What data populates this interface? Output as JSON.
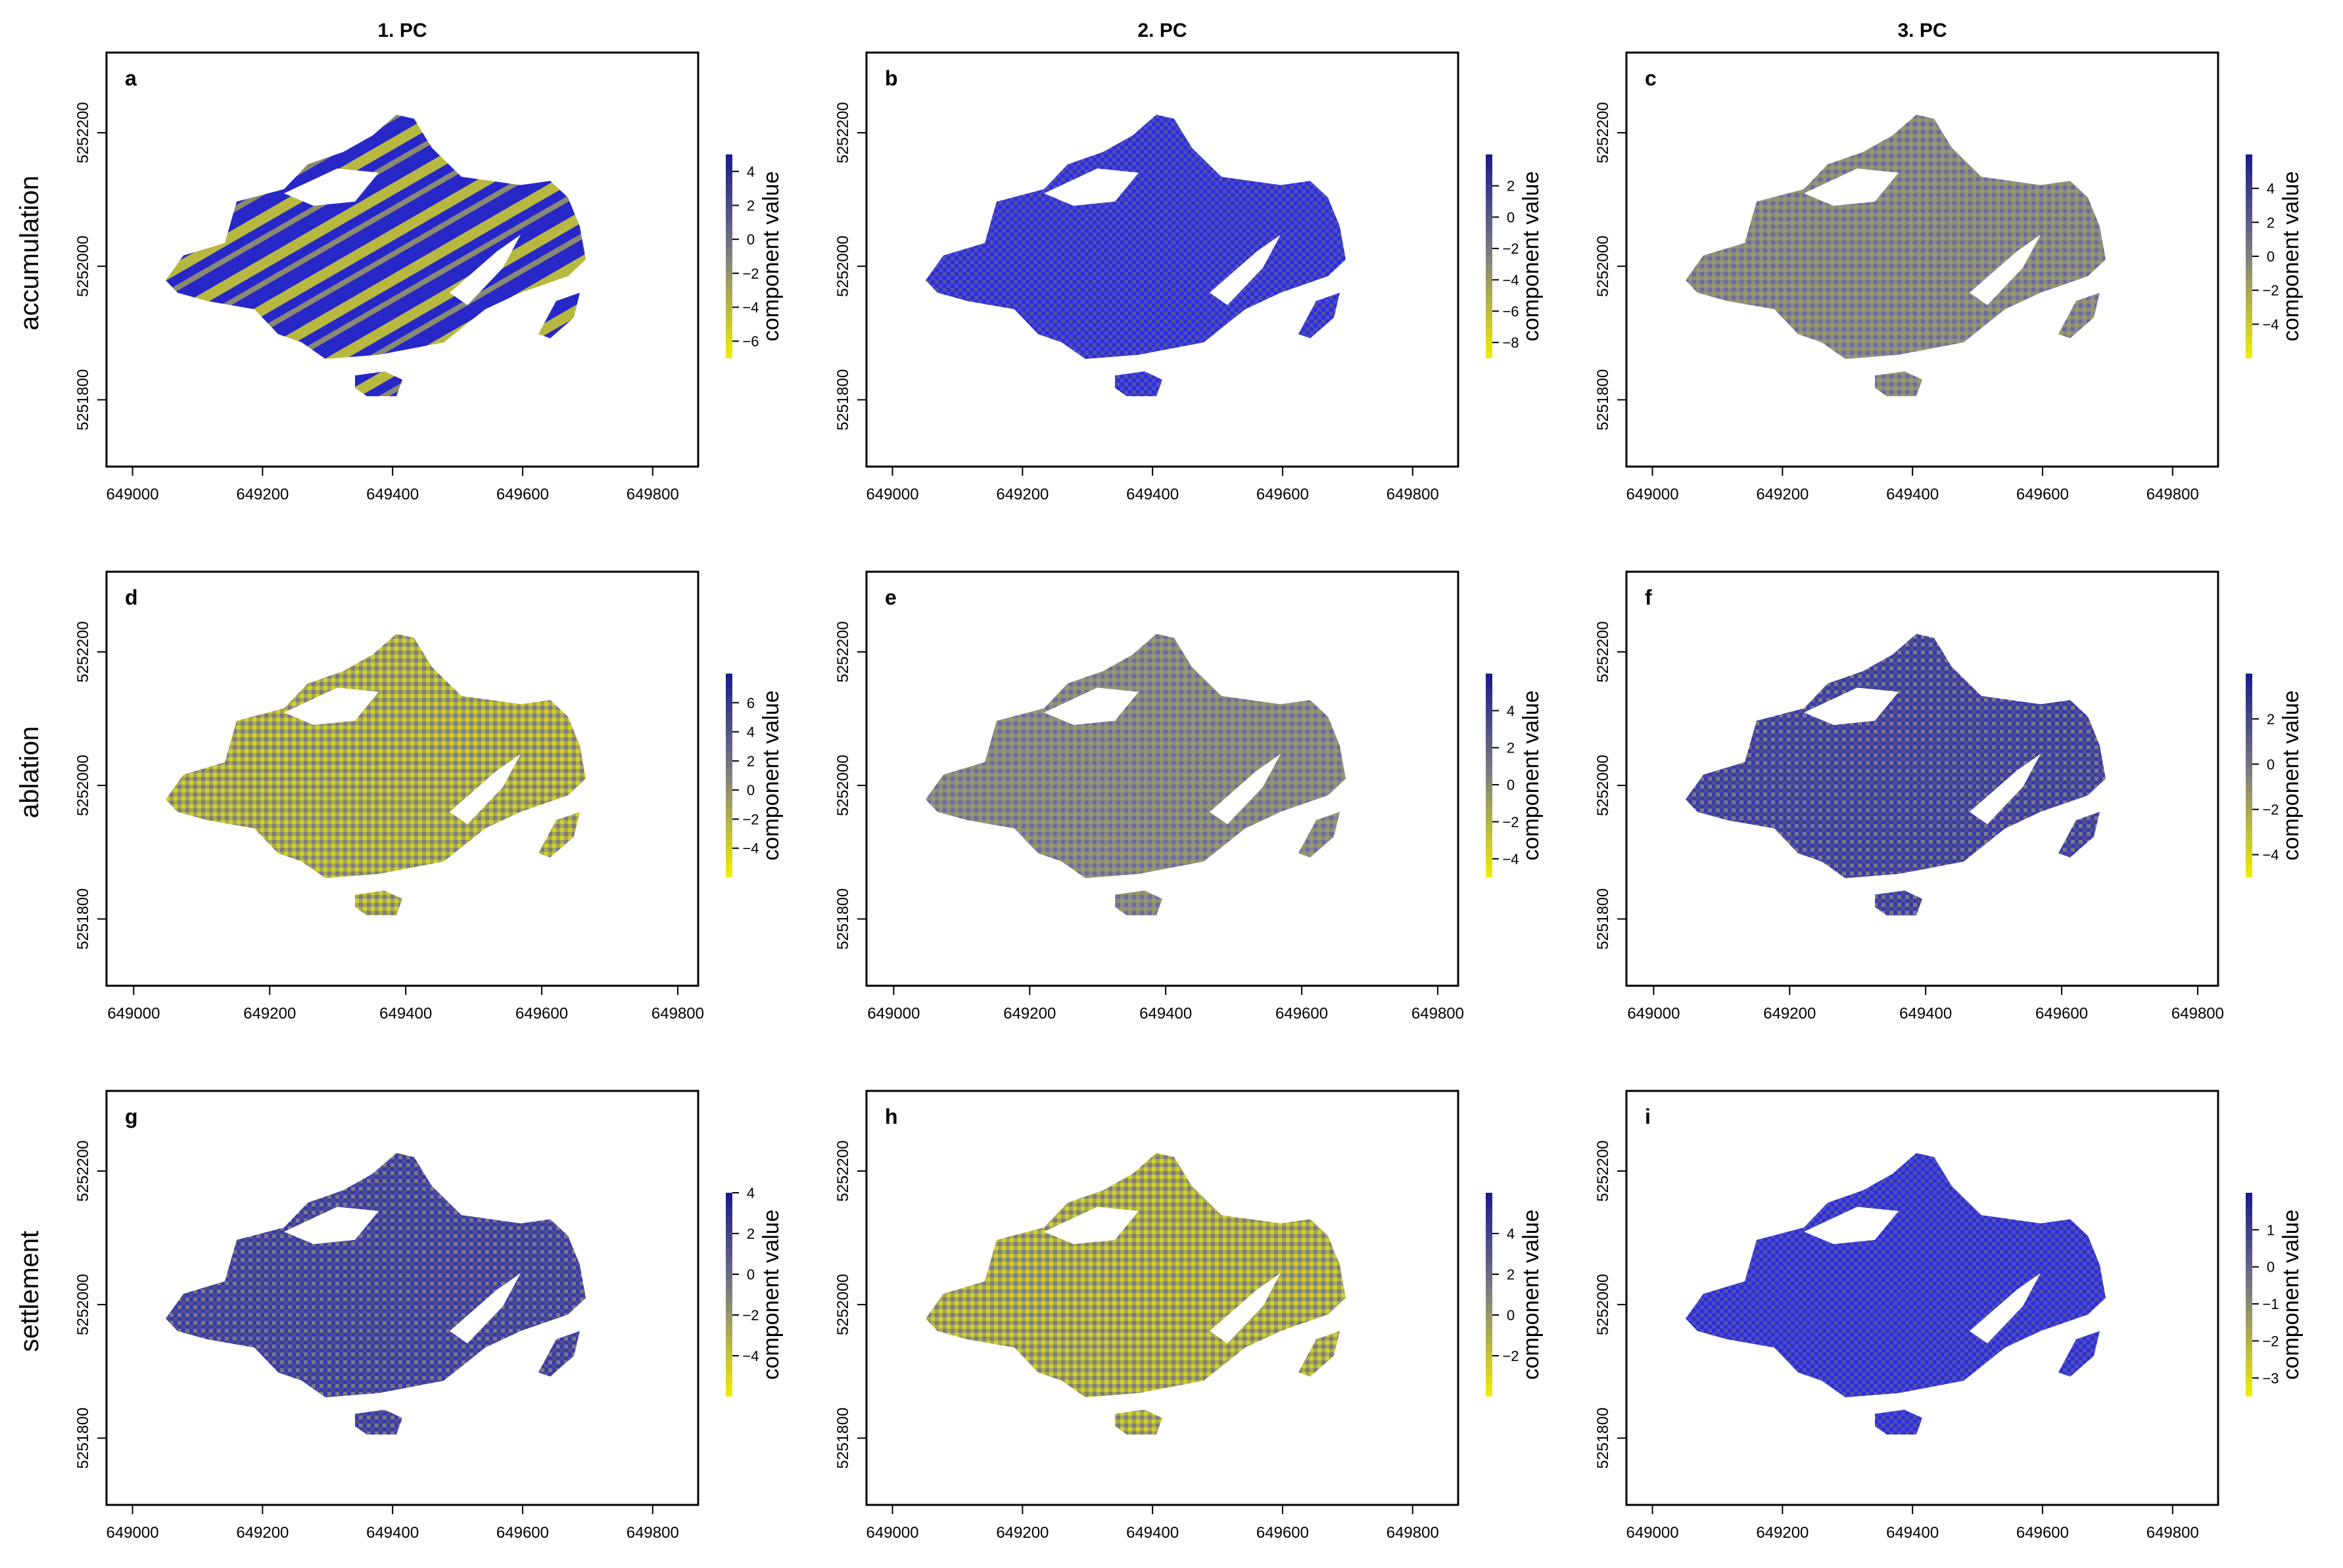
{
  "figure": {
    "column_titles": [
      "1. PC",
      "2. PC",
      "3. PC"
    ],
    "row_titles": [
      "accumulation",
      "ablation",
      "settlement"
    ],
    "colorbar_label": "component value",
    "colors": {
      "low": "#f0f000",
      "mid": "#808080",
      "high": "#1a1a8c",
      "bright_blue": "#2b2be0",
      "frame": "#000000"
    }
  },
  "chart_data": [
    {
      "type": "heatmap",
      "panel": "a",
      "row": "accumulation",
      "column": "1. PC",
      "xlim": [
        648960,
        649870
      ],
      "ylim": [
        5251700,
        5252320
      ],
      "xticks": [
        649000,
        649200,
        649400,
        649600,
        649800
      ],
      "xtick_labels": [
        "649000",
        "649200",
        "649400",
        "649600",
        "649800"
      ],
      "yticks": [
        5251800,
        5252000,
        5252200
      ],
      "ytick_labels": [
        "5251800",
        "5252000",
        "5252200"
      ],
      "colorbar": {
        "label": "component value",
        "range": [
          -7,
          5
        ],
        "ticks": [
          4,
          2,
          0,
          -2,
          -4,
          -6
        ],
        "tick_labels": [
          "4",
          "2",
          "0",
          "−2",
          "−4",
          "−6"
        ]
      },
      "dominant": "streaks"
    },
    {
      "type": "heatmap",
      "panel": "b",
      "row": "accumulation",
      "column": "2. PC",
      "xlim": [
        648960,
        649870
      ],
      "ylim": [
        5251700,
        5252320
      ],
      "xticks": [
        649000,
        649200,
        649400,
        649600,
        649800
      ],
      "xtick_labels": [
        "649000",
        "649200",
        "649400",
        "649600",
        "649800"
      ],
      "yticks": [
        5251800,
        5252000,
        5252200
      ],
      "ytick_labels": [
        "5251800",
        "5252000",
        "5252200"
      ],
      "colorbar": {
        "label": "component value",
        "range": [
          -9,
          4
        ],
        "ticks": [
          2,
          0,
          -2,
          -4,
          -6,
          -8
        ],
        "tick_labels": [
          "2",
          "0",
          "−2",
          "−4",
          "−6",
          "−8"
        ]
      },
      "dominant": "bright-blue"
    },
    {
      "type": "heatmap",
      "panel": "c",
      "row": "accumulation",
      "column": "3. PC",
      "xlim": [
        648960,
        649870
      ],
      "ylim": [
        5251700,
        5252320
      ],
      "xticks": [
        649000,
        649200,
        649400,
        649600,
        649800
      ],
      "xtick_labels": [
        "649000",
        "649200",
        "649400",
        "649600",
        "649800"
      ],
      "yticks": [
        5251800,
        5252000,
        5252200
      ],
      "ytick_labels": [
        "5251800",
        "5252000",
        "5252200"
      ],
      "colorbar": {
        "label": "component value",
        "range": [
          -6,
          6
        ],
        "ticks": [
          4,
          2,
          0,
          -2,
          -4
        ],
        "tick_labels": [
          "4",
          "2",
          "0",
          "−2",
          "−4"
        ]
      },
      "dominant": "gray"
    },
    {
      "type": "heatmap",
      "panel": "d",
      "row": "ablation",
      "column": "1. PC",
      "xlim": [
        648960,
        649830
      ],
      "ylim": [
        5251700,
        5252320
      ],
      "xticks": [
        649000,
        649200,
        649400,
        649600,
        649800
      ],
      "xtick_labels": [
        "649000",
        "649200",
        "649400",
        "649600",
        "649800"
      ],
      "yticks": [
        5251800,
        5252000,
        5252200
      ],
      "ytick_labels": [
        "5251800",
        "5252000",
        "5252200"
      ],
      "colorbar": {
        "label": "component value",
        "range": [
          -6,
          8
        ],
        "ticks": [
          6,
          4,
          2,
          0,
          -2,
          -4
        ],
        "tick_labels": [
          "6",
          "4",
          "2",
          "0",
          "−2",
          "−4"
        ]
      },
      "dominant": "yellow"
    },
    {
      "type": "heatmap",
      "panel": "e",
      "row": "ablation",
      "column": "2. PC",
      "xlim": [
        648960,
        649830
      ],
      "ylim": [
        5251700,
        5252320
      ],
      "xticks": [
        649000,
        649200,
        649400,
        649600,
        649800
      ],
      "xtick_labels": [
        "649000",
        "649200",
        "649400",
        "649600",
        "649800"
      ],
      "yticks": [
        5251800,
        5252000,
        5252200
      ],
      "ytick_labels": [
        "5251800",
        "5252000",
        "5252200"
      ],
      "colorbar": {
        "label": "component value",
        "range": [
          -5,
          6
        ],
        "ticks": [
          4,
          2,
          0,
          -2,
          -4
        ],
        "tick_labels": [
          "4",
          "2",
          "0",
          "−2",
          "−4"
        ]
      },
      "dominant": "gray"
    },
    {
      "type": "heatmap",
      "panel": "f",
      "row": "ablation",
      "column": "3. PC",
      "xlim": [
        648960,
        649830
      ],
      "ylim": [
        5251700,
        5252320
      ],
      "xticks": [
        649000,
        649200,
        649400,
        649600,
        649800
      ],
      "xtick_labels": [
        "649000",
        "649200",
        "649400",
        "649600",
        "649800"
      ],
      "yticks": [
        5251800,
        5252000,
        5252200
      ],
      "ytick_labels": [
        "5251800",
        "5252000",
        "5252200"
      ],
      "colorbar": {
        "label": "component value",
        "range": [
          -5,
          4
        ],
        "ticks": [
          2,
          0,
          -2,
          -4
        ],
        "tick_labels": [
          "2",
          "0",
          "−2",
          "−4"
        ]
      },
      "dominant": "blue"
    },
    {
      "type": "heatmap",
      "panel": "g",
      "row": "settlement",
      "column": "1. PC",
      "xlim": [
        648960,
        649870
      ],
      "ylim": [
        5251700,
        5252320
      ],
      "xticks": [
        649000,
        649200,
        649400,
        649600,
        649800
      ],
      "xtick_labels": [
        "649000",
        "649200",
        "649400",
        "649600",
        "649800"
      ],
      "yticks": [
        5251800,
        5252000,
        5252200
      ],
      "ytick_labels": [
        "5251800",
        "5252000",
        "5252200"
      ],
      "colorbar": {
        "label": "component value",
        "range": [
          -6,
          4
        ],
        "ticks": [
          4,
          2,
          0,
          -2,
          -4
        ],
        "tick_labels": [
          "4",
          "2",
          "0",
          "−2",
          "−4"
        ]
      },
      "dominant": "blue"
    },
    {
      "type": "heatmap",
      "panel": "h",
      "row": "settlement",
      "column": "2. PC",
      "xlim": [
        648960,
        649870
      ],
      "ylim": [
        5251700,
        5252320
      ],
      "xticks": [
        649000,
        649200,
        649400,
        649600,
        649800
      ],
      "xtick_labels": [
        "649000",
        "649200",
        "649400",
        "649600",
        "649800"
      ],
      "yticks": [
        5251800,
        5252000,
        5252200
      ],
      "ytick_labels": [
        "5251800",
        "5252000",
        "5252200"
      ],
      "colorbar": {
        "label": "component value",
        "range": [
          -4,
          6
        ],
        "ticks": [
          4,
          2,
          0,
          -2
        ],
        "tick_labels": [
          "4",
          "2",
          "0",
          "−2"
        ]
      },
      "dominant": "yellow"
    },
    {
      "type": "heatmap",
      "panel": "i",
      "row": "settlement",
      "column": "3. PC",
      "xlim": [
        648960,
        649870
      ],
      "ylim": [
        5251700,
        5252320
      ],
      "xticks": [
        649000,
        649200,
        649400,
        649600,
        649800
      ],
      "xtick_labels": [
        "649000",
        "649200",
        "649400",
        "649600",
        "649800"
      ],
      "yticks": [
        5251800,
        5252000,
        5252200
      ],
      "ytick_labels": [
        "5251800",
        "5252000",
        "5252200"
      ],
      "colorbar": {
        "label": "component value",
        "range": [
          -3.5,
          2
        ],
        "ticks": [
          1,
          0,
          -1,
          -2,
          -3
        ],
        "tick_labels": [
          "1",
          "0",
          "−1",
          "−2",
          "−3"
        ]
      },
      "dominant": "bright-blue"
    }
  ]
}
